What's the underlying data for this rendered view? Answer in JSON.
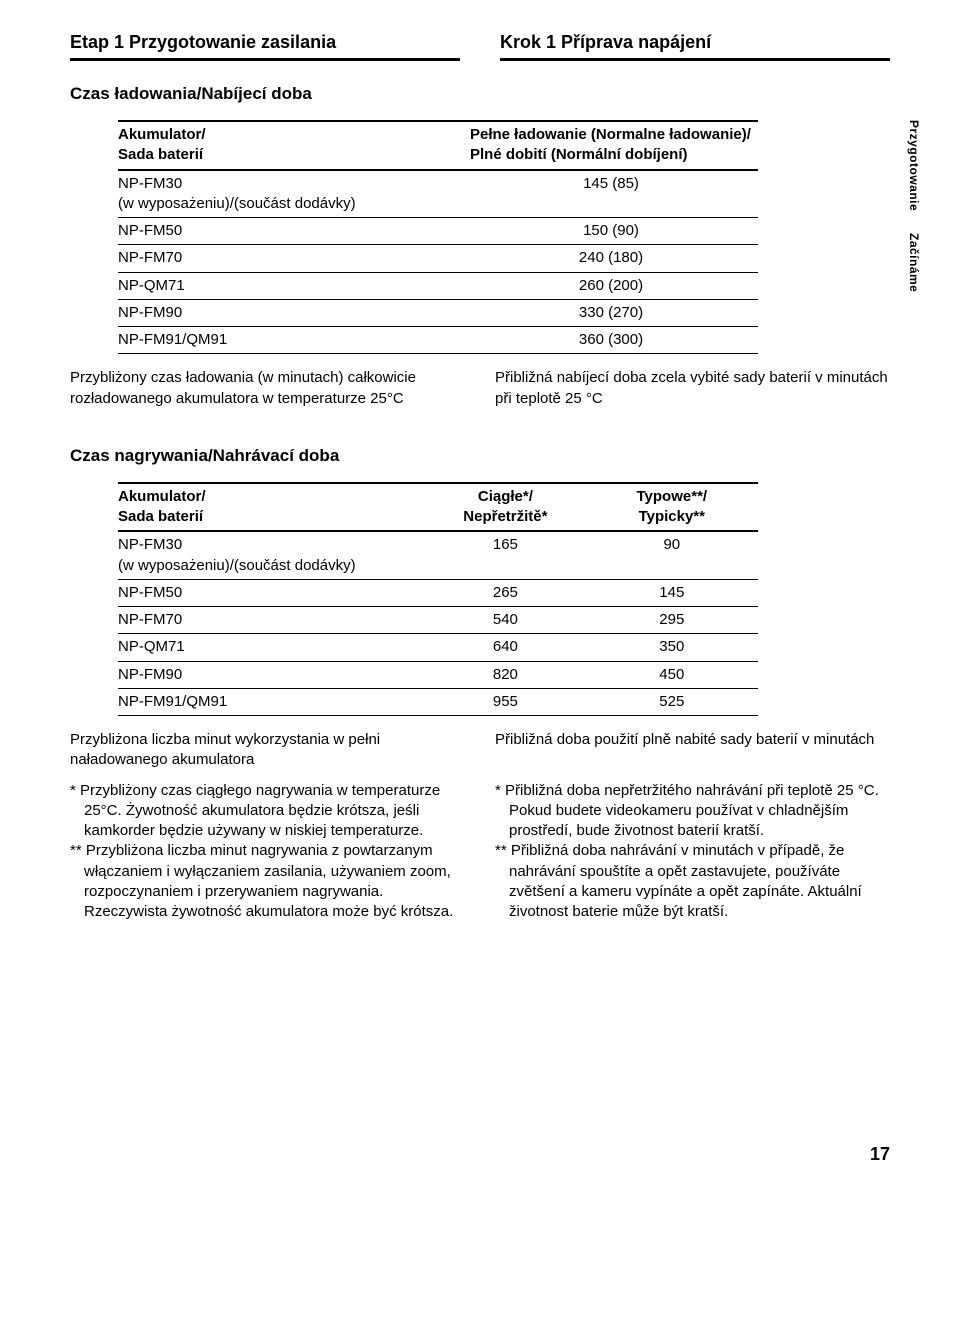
{
  "headers": {
    "left": "Etap 1  Przygotowanie zasilania",
    "right": "Krok 1  Příprava napájení"
  },
  "side_labels": {
    "a": "Przygotowanie",
    "b": "Začínáme"
  },
  "section1": {
    "title": "Czas ładowania/Nabíjecí doba",
    "th_left": "Akumulator/\nSada baterií",
    "th_right": "Pełne ładowanie (Normalne ładowanie)/\nPlné dobití (Normální dobíjení)",
    "rows": [
      {
        "name": "NP-FM30\n(w wyposażeniu)/(součást dodávky)",
        "val": "145 (85)"
      },
      {
        "name": "NP-FM50",
        "val": "150 (90)"
      },
      {
        "name": "NP-FM70",
        "val": "240 (180)"
      },
      {
        "name": "NP-QM71",
        "val": "260 (200)"
      },
      {
        "name": "NP-FM90",
        "val": "330 (270)"
      },
      {
        "name": "NP-FM91/QM91",
        "val": "360 (300)"
      }
    ],
    "note_left": "Przybliżony czas ładowania (w minutach) całkowicie rozładowanego akumulatora w temperaturze 25°C",
    "note_right": "Přibližná nabíjecí doba zcela vybité sady baterií v minutách při teplotě 25 °C"
  },
  "section2": {
    "title": "Czas nagrywania/Nahrávací doba",
    "th_left": "Akumulator/\nSada baterií",
    "th_mid": "Ciągłe*/\nNepřetržitě*",
    "th_right": "Typowe**/\nTypicky**",
    "rows": [
      {
        "name": "NP-FM30\n(w wyposażeniu)/(součást dodávky)",
        "c1": "165",
        "c2": "90"
      },
      {
        "name": "NP-FM50",
        "c1": "265",
        "c2": "145"
      },
      {
        "name": "NP-FM70",
        "c1": "540",
        "c2": "295"
      },
      {
        "name": "NP-QM71",
        "c1": "640",
        "c2": "350"
      },
      {
        "name": "NP-FM90",
        "c1": "820",
        "c2": "450"
      },
      {
        "name": "NP-FM91/QM91",
        "c1": "955",
        "c2": "525"
      }
    ],
    "note_left": "Przybliżona liczba minut wykorzystania w pełni naładowanego akumulatora",
    "note_right": "Přibližná doba použití plně nabité sady baterií v minutách",
    "ast_left_1": "*  Przybliżony czas ciągłego nagrywania w temperaturze 25°C. Żywotność akumulatora będzie krótsza, jeśli kamkorder będzie używany w niskiej temperaturze.",
    "ast_left_2": "** Przybliżona liczba minut nagrywania z powtarzanym włączaniem i wyłączaniem zasilania, używaniem zoom, rozpoczynaniem i przerywaniem nagrywania. Rzeczywista żywotność akumulatora może być krótsza.",
    "ast_right_1": "*  Přibližná doba nepřetržitého nahrávání při teplotě 25 °C. Pokud budete videokameru používat v chladnějším prostředí, bude životnost baterií kratší.",
    "ast_right_2": "** Přibližná doba nahrávání v minutách v případě, že nahrávání spouštíte a opět zastavujete, používáte zvětšení a kameru vypínáte a opět zapínáte. Aktuální životnost baterie může být kratší."
  },
  "page_number": "17"
}
